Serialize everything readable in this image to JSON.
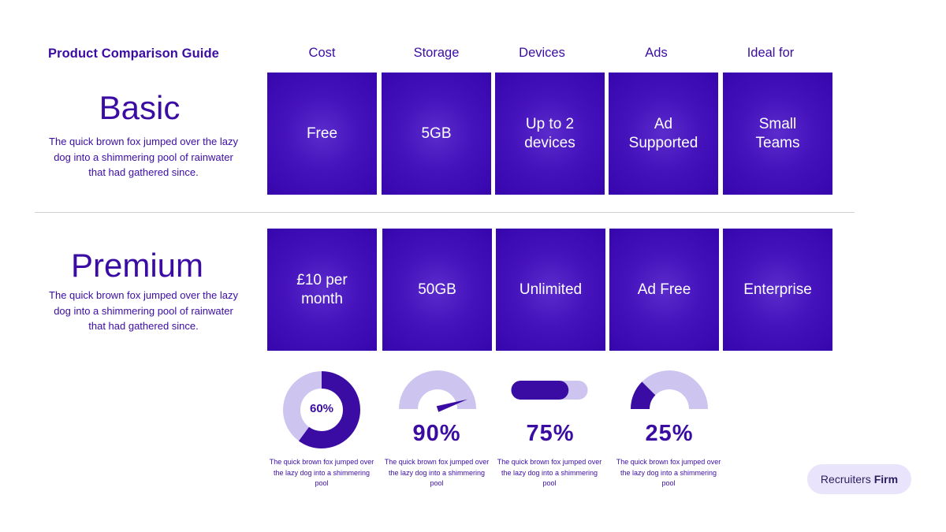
{
  "guide_title": "Product Comparison Guide",
  "columns": [
    "Cost",
    "Storage",
    "Devices",
    "Ads",
    "Ideal for"
  ],
  "plans": [
    {
      "name": "Basic",
      "description": "The quick brown fox jumped over the lazy dog into a shimmering pool of rainwater that had gathered since.",
      "cells": [
        "Free",
        "5GB",
        "Up to 2 devices",
        "Ad Supported",
        "Small Teams"
      ]
    },
    {
      "name": "Premium",
      "description": "The quick brown fox jumped over the lazy dog into a shimmering pool of rainwater that had gathered since.",
      "cells": [
        "£10 per month",
        "50GB",
        "Unlimited",
        "Ad Free",
        "Enterprise"
      ]
    }
  ],
  "metrics": [
    {
      "kind": "donut",
      "label": "60%",
      "fraction": 0.6,
      "description": "The quick brown fox jumped over the lazy dog into a shimmering pool"
    },
    {
      "kind": "gauge-needle",
      "label": "90%",
      "fraction": 0.9,
      "description": "The quick brown fox jumped over the lazy dog into a shimmering pool"
    },
    {
      "kind": "progress-bar",
      "label": "75%",
      "fraction": 0.75,
      "description": "The quick brown fox jumped over the lazy dog into a shimmering pool"
    },
    {
      "kind": "gauge-fill",
      "label": "25%",
      "fraction": 0.25,
      "description": "The quick brown fox jumped over the lazy dog into a shimmering pool"
    }
  ],
  "brand": {
    "part1": "Recruiters",
    "part2": "Firm"
  },
  "colors": {
    "primary": "#3a0ca3",
    "tile": "#4512bc",
    "track": "#cdc4f0",
    "brand_bg": "#e9e4fb"
  }
}
